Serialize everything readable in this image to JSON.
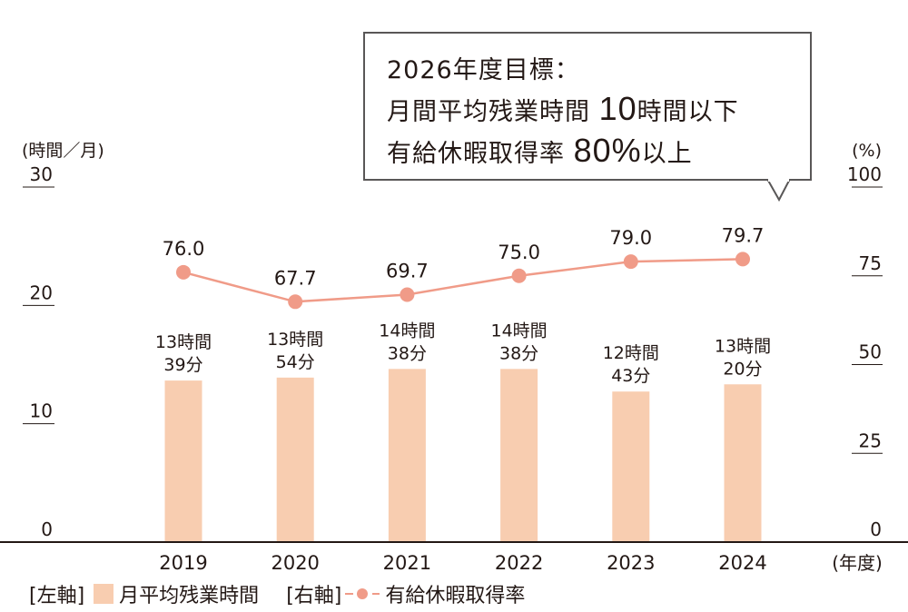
{
  "goal": {
    "title": "2026年度目標：",
    "line2_prefix": "月間平均残業時間",
    "line2_value": "10",
    "line2_suffix": "時間以下",
    "line3_prefix": "有給休暇取得率",
    "line3_value": "80%",
    "line3_suffix": "以上"
  },
  "colors": {
    "bar": "#F8CDB0",
    "line": "#F09B88",
    "text": "#231815",
    "axis": "#231815",
    "box_border": "#595757"
  },
  "legend": {
    "left_axis": "[左軸]",
    "bar_label": "月平均残業時間",
    "right_axis": "[右軸]",
    "line_label": "有給休暇取得率"
  },
  "chart_data": {
    "type": "bar+line",
    "categories": [
      "2019",
      "2020",
      "2021",
      "2022",
      "2023",
      "2024"
    ],
    "xlabel": "(年度)",
    "series": [
      {
        "name": "月平均残業時間",
        "type": "bar",
        "axis": "left",
        "values": [
          13.65,
          13.9,
          14.63,
          14.63,
          12.72,
          13.33
        ],
        "labels": [
          [
            "13時間",
            "39分"
          ],
          [
            "13時間",
            "54分"
          ],
          [
            "14時間",
            "38分"
          ],
          [
            "14時間",
            "38分"
          ],
          [
            "12時間",
            "43分"
          ],
          [
            "13時間",
            "20分"
          ]
        ]
      },
      {
        "name": "有給休暇取得率",
        "type": "line",
        "axis": "right",
        "values": [
          76.0,
          67.7,
          69.7,
          75.0,
          79.0,
          79.7
        ],
        "labels": [
          "76.0",
          "67.7",
          "69.7",
          "75.0",
          "79.0",
          "79.7"
        ]
      }
    ],
    "left_axis": {
      "label": "(時間／月)",
      "ylim": [
        0,
        30
      ],
      "ticks": [
        "0",
        "10",
        "20",
        "30"
      ]
    },
    "right_axis": {
      "label": "(%)",
      "ylim": [
        0,
        100
      ],
      "ticks": [
        "0",
        "25",
        "50",
        "75",
        "100"
      ]
    },
    "grid": false,
    "legend_position": "bottom-left"
  }
}
